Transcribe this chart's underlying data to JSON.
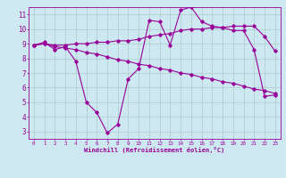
{
  "bg_color": "#cde8f0",
  "line_color": "#990099",
  "grid_color": "#aacccc",
  "xlabel": "Windchill (Refroidissement éolien,°C)",
  "xlim": [
    -0.5,
    23.5
  ],
  "ylim": [
    2.5,
    11.5
  ],
  "xticks": [
    0,
    1,
    2,
    3,
    4,
    5,
    6,
    7,
    8,
    9,
    10,
    11,
    12,
    13,
    14,
    15,
    16,
    17,
    18,
    19,
    20,
    21,
    22,
    23
  ],
  "yticks": [
    3,
    4,
    5,
    6,
    7,
    8,
    9,
    10,
    11
  ],
  "series1_x": [
    0,
    1,
    2,
    3,
    4,
    5,
    6,
    7,
    8,
    9,
    10,
    11,
    12,
    13,
    14,
    15,
    16,
    17,
    18,
    19,
    20,
    21,
    22,
    23
  ],
  "series1_y": [
    8.9,
    9.1,
    8.6,
    8.8,
    7.8,
    5.0,
    4.3,
    2.9,
    3.5,
    6.6,
    7.3,
    10.6,
    10.5,
    8.9,
    11.3,
    11.5,
    10.5,
    10.2,
    10.1,
    9.9,
    9.9,
    8.6,
    5.4,
    5.5
  ],
  "series2_x": [
    0,
    1,
    2,
    3,
    4,
    5,
    6,
    7,
    8,
    9,
    10,
    11,
    12,
    13,
    14,
    15,
    16,
    17,
    18,
    19,
    20,
    21,
    22,
    23
  ],
  "series2_y": [
    8.9,
    9.0,
    8.9,
    8.9,
    9.0,
    9.0,
    9.1,
    9.1,
    9.2,
    9.2,
    9.3,
    9.5,
    9.6,
    9.7,
    9.9,
    10.0,
    10.0,
    10.1,
    10.1,
    10.2,
    10.2,
    10.2,
    9.5,
    8.5
  ],
  "series3_x": [
    0,
    1,
    2,
    3,
    4,
    5,
    6,
    7,
    8,
    9,
    10,
    11,
    12,
    13,
    14,
    15,
    16,
    17,
    18,
    19,
    20,
    21,
    22,
    23
  ],
  "series3_y": [
    8.9,
    9.0,
    8.8,
    8.7,
    8.6,
    8.4,
    8.3,
    8.1,
    7.9,
    7.8,
    7.6,
    7.5,
    7.3,
    7.2,
    7.0,
    6.9,
    6.7,
    6.6,
    6.4,
    6.3,
    6.1,
    5.9,
    5.8,
    5.6
  ]
}
